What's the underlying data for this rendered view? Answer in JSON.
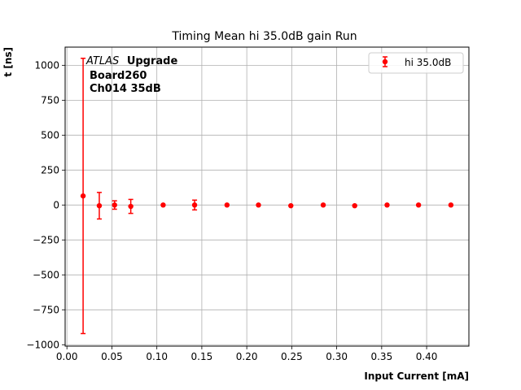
{
  "chart_data": {
    "type": "scatter",
    "title": "Timing Mean hi 35.0dB gain Run",
    "xlabel": "Input Current [mA]",
    "ylabel": "t [ns]",
    "xlim": [
      -0.002,
      0.447
    ],
    "ylim": [
      -1010,
      1130
    ],
    "xticks": [
      0.0,
      0.05,
      0.1,
      0.15,
      0.2,
      0.25,
      0.3,
      0.35,
      0.4
    ],
    "xtick_labels": [
      "0.00",
      "0.05",
      "0.10",
      "0.15",
      "0.20",
      "0.25",
      "0.30",
      "0.35",
      "0.40"
    ],
    "yticks": [
      -1000,
      -750,
      -500,
      -250,
      0,
      250,
      500,
      750,
      1000
    ],
    "ytick_labels": [
      "−1000",
      "−750",
      "−500",
      "−250",
      "0",
      "250",
      "500",
      "750",
      "1000"
    ],
    "grid": true,
    "legend": {
      "position": "top-right",
      "entries": [
        "hi 35.0dB"
      ]
    },
    "annotations": {
      "experiment_italic": "ATLAS",
      "experiment_bold": "Upgrade",
      "board": "Board260",
      "channel": "Ch014 35dB"
    },
    "series": [
      {
        "name": "hi 35.0dB",
        "color": "#ff0000",
        "marker": "circle",
        "points": [
          {
            "x": 0.018,
            "y": 65,
            "err": 985
          },
          {
            "x": 0.036,
            "y": -5,
            "err": 95
          },
          {
            "x": 0.053,
            "y": 0,
            "err": 30
          },
          {
            "x": 0.071,
            "y": -10,
            "err": 50
          },
          {
            "x": 0.107,
            "y": 0,
            "err": 0
          },
          {
            "x": 0.142,
            "y": 0,
            "err": 35
          },
          {
            "x": 0.178,
            "y": 0,
            "err": 0
          },
          {
            "x": 0.213,
            "y": 0,
            "err": 0
          },
          {
            "x": 0.249,
            "y": -5,
            "err": 0
          },
          {
            "x": 0.285,
            "y": 0,
            "err": 0
          },
          {
            "x": 0.32,
            "y": -5,
            "err": 0
          },
          {
            "x": 0.356,
            "y": 0,
            "err": 0
          },
          {
            "x": 0.391,
            "y": 0,
            "err": 0
          },
          {
            "x": 0.427,
            "y": 0,
            "err": 0
          }
        ]
      }
    ]
  }
}
